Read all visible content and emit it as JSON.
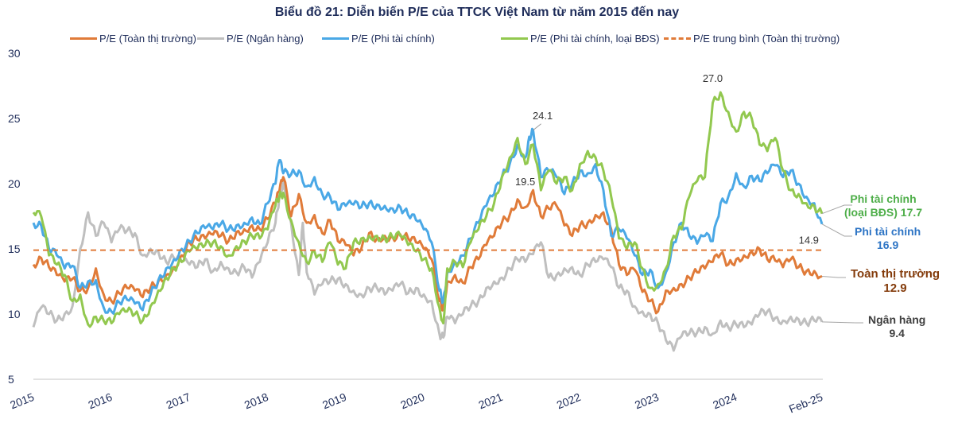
{
  "chart_data": {
    "type": "line",
    "title": "Biểu đồ 21: Diễn biến P/E của TTCK Việt Nam từ năm 2015 đến nay",
    "xlabel": "",
    "ylabel": "",
    "ylim": [
      5,
      30
    ],
    "xlim": [
      2015.0,
      2025.12
    ],
    "yticks": [
      "30",
      "25",
      "20",
      "15",
      "10",
      "5"
    ],
    "ytick_values": [
      30,
      25,
      20,
      15,
      10,
      5
    ],
    "xticks": [
      "2015",
      "2016",
      "2017",
      "2018",
      "2019",
      "2020",
      "2021",
      "2022",
      "2023",
      "2024",
      "Feb-25"
    ],
    "xtick_values": [
      2015,
      2016,
      2017,
      2018,
      2019,
      2020,
      2021,
      2022,
      2023,
      2024,
      2025.1
    ],
    "grid": false,
    "legend_position": "top",
    "series": [
      {
        "name": "P/E (Toàn thị trường)",
        "key": "market",
        "color": "#e07b39",
        "style": "solid",
        "x": [
          2015.0,
          2015.1,
          2015.2,
          2015.3,
          2015.4,
          2015.5,
          2015.6,
          2015.7,
          2015.8,
          2015.9,
          2016.0,
          2016.1,
          2016.2,
          2016.3,
          2016.4,
          2016.5,
          2016.6,
          2016.7,
          2016.8,
          2016.9,
          2017.0,
          2017.1,
          2017.2,
          2017.3,
          2017.4,
          2017.5,
          2017.6,
          2017.7,
          2017.8,
          2017.9,
          2018.0,
          2018.1,
          2018.15,
          2018.2,
          2018.3,
          2018.4,
          2018.5,
          2018.6,
          2018.7,
          2018.8,
          2018.9,
          2019.0,
          2019.1,
          2019.2,
          2019.3,
          2019.4,
          2019.5,
          2019.6,
          2019.7,
          2019.8,
          2019.9,
          2020.0,
          2020.1,
          2020.2,
          2020.25,
          2020.3,
          2020.4,
          2020.5,
          2020.6,
          2020.7,
          2020.8,
          2020.9,
          2021.0,
          2021.1,
          2021.2,
          2021.3,
          2021.4,
          2021.5,
          2021.6,
          2021.7,
          2021.8,
          2021.9,
          2022.0,
          2022.1,
          2022.2,
          2022.3,
          2022.4,
          2022.5,
          2022.6,
          2022.7,
          2022.8,
          2022.9,
          2023.0,
          2023.1,
          2023.2,
          2023.3,
          2023.4,
          2023.5,
          2023.6,
          2023.7,
          2023.8,
          2023.9,
          2024.0,
          2024.1,
          2024.2,
          2024.3,
          2024.4,
          2024.5,
          2024.6,
          2024.7,
          2024.8,
          2024.9,
          2025.0,
          2025.1
        ],
        "values": [
          13.8,
          14.3,
          13.6,
          13.0,
          12.5,
          12.7,
          11.8,
          12.0,
          13.5,
          11.5,
          11.0,
          11.6,
          12.0,
          11.8,
          11.3,
          12.0,
          12.5,
          13.0,
          13.6,
          14.5,
          15.5,
          15.7,
          15.8,
          16.1,
          16.0,
          15.6,
          16.3,
          16.5,
          16.8,
          16.5,
          17.3,
          18.5,
          19.4,
          20.5,
          17.5,
          19.2,
          17.0,
          17.6,
          16.2,
          17.2,
          15.6,
          15.3,
          14.5,
          15.0,
          16.2,
          15.8,
          16.0,
          15.9,
          16.1,
          15.8,
          15.5,
          15.0,
          14.2,
          11.0,
          10.5,
          12.5,
          13.0,
          12.4,
          13.6,
          14.2,
          15.3,
          16.0,
          17.0,
          17.6,
          18.8,
          18.2,
          19.5,
          17.5,
          18.1,
          18.3,
          16.8,
          16.0,
          16.8,
          17.0,
          17.6,
          17.8,
          16.5,
          13.8,
          13.0,
          13.4,
          11.7,
          11.0,
          10.2,
          11.8,
          12.0,
          12.3,
          12.8,
          13.2,
          13.5,
          14.0,
          14.6,
          13.8,
          14.2,
          14.5,
          14.8,
          15.0,
          14.2,
          14.1,
          13.6,
          14.2,
          13.6,
          13.3,
          13.3,
          12.9
        ]
      },
      {
        "name": "P/E (Ngân hàng)",
        "key": "bank",
        "color": "#bfbfbf",
        "style": "solid",
        "x": [
          2015.0,
          2015.1,
          2015.2,
          2015.3,
          2015.4,
          2015.5,
          2015.6,
          2015.7,
          2015.8,
          2015.9,
          2016.0,
          2016.1,
          2016.2,
          2016.3,
          2016.4,
          2016.5,
          2016.6,
          2016.7,
          2016.8,
          2016.9,
          2017.0,
          2017.1,
          2017.2,
          2017.3,
          2017.4,
          2017.5,
          2017.6,
          2017.7,
          2017.8,
          2017.9,
          2018.0,
          2018.1,
          2018.15,
          2018.2,
          2018.3,
          2018.4,
          2018.45,
          2018.5,
          2018.6,
          2018.7,
          2018.8,
          2018.9,
          2019.0,
          2019.1,
          2019.2,
          2019.3,
          2019.4,
          2019.5,
          2019.6,
          2019.7,
          2019.8,
          2019.9,
          2020.0,
          2020.1,
          2020.2,
          2020.25,
          2020.3,
          2020.4,
          2020.5,
          2020.6,
          2020.7,
          2020.8,
          2020.9,
          2021.0,
          2021.1,
          2021.2,
          2021.3,
          2021.4,
          2021.5,
          2021.6,
          2021.7,
          2021.8,
          2021.9,
          2022.0,
          2022.1,
          2022.2,
          2022.3,
          2022.4,
          2022.5,
          2022.6,
          2022.7,
          2022.8,
          2022.9,
          2023.0,
          2023.1,
          2023.2,
          2023.3,
          2023.4,
          2023.5,
          2023.6,
          2023.7,
          2023.8,
          2023.9,
          2024.0,
          2024.1,
          2024.2,
          2024.3,
          2024.4,
          2024.5,
          2024.6,
          2024.7,
          2024.8,
          2024.9,
          2025.0,
          2025.1
        ],
        "values": [
          9.0,
          10.5,
          10.0,
          9.5,
          10.0,
          10.6,
          15.0,
          17.8,
          16.0,
          17.0,
          15.5,
          16.5,
          16.4,
          16.2,
          14.5,
          15.0,
          14.8,
          14.0,
          14.3,
          14.0,
          13.8,
          13.6,
          14.2,
          13.3,
          14.0,
          13.5,
          13.2,
          13.6,
          12.8,
          14.0,
          15.5,
          17.0,
          19.0,
          20.2,
          17.0,
          13.0,
          17.0,
          13.2,
          11.5,
          12.3,
          12.5,
          12.7,
          12.3,
          11.8,
          11.5,
          12.0,
          12.0,
          11.5,
          11.8,
          12.3,
          11.6,
          12.0,
          11.5,
          11.0,
          8.5,
          8.2,
          9.8,
          9.3,
          10.0,
          10.6,
          11.0,
          12.0,
          12.5,
          12.8,
          13.5,
          14.2,
          14.0,
          14.6,
          15.5,
          12.8,
          13.0,
          13.5,
          13.6,
          13.0,
          13.8,
          14.0,
          14.2,
          13.6,
          12.0,
          11.8,
          10.6,
          10.2,
          10.0,
          9.3,
          8.0,
          7.2,
          8.3,
          8.5,
          8.6,
          9.0,
          8.5,
          9.5,
          9.0,
          9.2,
          9.0,
          9.2,
          10.0,
          10.2,
          9.7,
          9.5,
          9.8,
          9.6,
          9.3,
          9.5,
          9.4
        ]
      },
      {
        "name": "P/E (Phi tài chính)",
        "key": "nonfin",
        "color": "#4aa8e6",
        "style": "solid",
        "x": [
          2015.0,
          2015.1,
          2015.2,
          2015.3,
          2015.4,
          2015.5,
          2015.6,
          2015.7,
          2015.8,
          2015.9,
          2016.0,
          2016.1,
          2016.2,
          2016.3,
          2016.4,
          2016.5,
          2016.6,
          2016.7,
          2016.8,
          2016.9,
          2017.0,
          2017.1,
          2017.2,
          2017.3,
          2017.4,
          2017.5,
          2017.6,
          2017.7,
          2017.8,
          2017.9,
          2018.0,
          2018.1,
          2018.15,
          2018.2,
          2018.3,
          2018.4,
          2018.5,
          2018.6,
          2018.7,
          2018.8,
          2018.9,
          2019.0,
          2019.1,
          2019.2,
          2019.3,
          2019.4,
          2019.5,
          2019.6,
          2019.7,
          2019.8,
          2019.9,
          2020.0,
          2020.1,
          2020.2,
          2020.25,
          2020.3,
          2020.4,
          2020.5,
          2020.6,
          2020.7,
          2020.8,
          2020.9,
          2021.0,
          2021.1,
          2021.2,
          2021.3,
          2021.35,
          2021.4,
          2021.5,
          2021.6,
          2021.7,
          2021.8,
          2021.9,
          2022.0,
          2022.1,
          2022.2,
          2022.3,
          2022.4,
          2022.5,
          2022.6,
          2022.7,
          2022.8,
          2022.9,
          2023.0,
          2023.1,
          2023.2,
          2023.3,
          2023.4,
          2023.5,
          2023.6,
          2023.7,
          2023.8,
          2023.9,
          2024.0,
          2024.1,
          2024.2,
          2024.3,
          2024.4,
          2024.5,
          2024.6,
          2024.7,
          2024.8,
          2024.9,
          2025.0,
          2025.1
        ],
        "values": [
          17.0,
          16.8,
          15.0,
          14.5,
          13.5,
          13.7,
          12.0,
          12.5,
          12.6,
          10.5,
          10.2,
          10.9,
          11.1,
          10.8,
          10.3,
          11.5,
          12.6,
          13.5,
          14.2,
          15.0,
          15.6,
          16.2,
          16.6,
          16.5,
          16.9,
          16.5,
          16.8,
          17.0,
          17.4,
          16.9,
          18.5,
          20.0,
          21.8,
          20.8,
          20.7,
          21.0,
          19.8,
          20.5,
          19.2,
          19.0,
          18.0,
          18.3,
          18.4,
          18.2,
          18.5,
          18.4,
          18.3,
          18.1,
          18.2,
          17.6,
          17.2,
          16.5,
          15.5,
          11.8,
          11.0,
          13.2,
          14.0,
          14.5,
          15.8,
          17.0,
          18.3,
          19.2,
          20.5,
          21.5,
          23.0,
          22.0,
          23.6,
          24.1,
          20.5,
          21.0,
          20.5,
          19.2,
          20.0,
          21.0,
          20.8,
          21.5,
          19.5,
          16.0,
          16.5,
          15.8,
          14.5,
          13.0,
          13.4,
          12.0,
          13.2,
          15.5,
          17.0,
          16.0,
          15.4,
          16.0,
          15.6,
          18.5,
          19.0,
          20.8,
          19.8,
          20.6,
          20.2,
          20.8,
          21.4,
          20.5,
          21.0,
          20.0,
          19.0,
          18.5,
          16.9
        ]
      },
      {
        "name": "P/E (Phi tài chính, loại BĐS)",
        "key": "nonfin_exre",
        "color": "#92c84f",
        "style": "solid",
        "x": [
          2015.0,
          2015.1,
          2015.2,
          2015.3,
          2015.4,
          2015.5,
          2015.6,
          2015.7,
          2015.8,
          2015.9,
          2016.0,
          2016.1,
          2016.2,
          2016.3,
          2016.4,
          2016.5,
          2016.6,
          2016.7,
          2016.8,
          2016.9,
          2017.0,
          2017.1,
          2017.2,
          2017.3,
          2017.4,
          2017.5,
          2017.6,
          2017.7,
          2017.8,
          2017.9,
          2018.0,
          2018.1,
          2018.15,
          2018.2,
          2018.3,
          2018.4,
          2018.5,
          2018.6,
          2018.7,
          2018.8,
          2018.9,
          2019.0,
          2019.1,
          2019.2,
          2019.3,
          2019.4,
          2019.5,
          2019.6,
          2019.7,
          2019.8,
          2019.9,
          2020.0,
          2020.1,
          2020.2,
          2020.25,
          2020.3,
          2020.4,
          2020.5,
          2020.6,
          2020.7,
          2020.8,
          2020.9,
          2021.0,
          2021.1,
          2021.2,
          2021.3,
          2021.4,
          2021.5,
          2021.6,
          2021.7,
          2021.8,
          2021.9,
          2022.0,
          2022.1,
          2022.2,
          2022.3,
          2022.4,
          2022.5,
          2022.6,
          2022.7,
          2022.8,
          2022.9,
          2023.0,
          2023.1,
          2023.2,
          2023.3,
          2023.4,
          2023.5,
          2023.6,
          2023.7,
          2023.8,
          2023.9,
          2024.0,
          2024.1,
          2024.2,
          2024.3,
          2024.4,
          2024.5,
          2024.6,
          2024.7,
          2024.8,
          2024.9,
          2025.0,
          2025.1
        ],
        "values": [
          17.8,
          17.5,
          14.5,
          13.8,
          13.0,
          11.0,
          11.5,
          9.2,
          9.8,
          9.5,
          9.3,
          10.0,
          10.2,
          10.0,
          9.5,
          10.6,
          11.8,
          12.8,
          13.5,
          14.0,
          14.8,
          15.0,
          15.3,
          15.5,
          15.2,
          14.5,
          15.2,
          15.6,
          16.0,
          15.8,
          16.5,
          18.3,
          19.0,
          19.3,
          17.2,
          15.5,
          14.0,
          14.8,
          14.0,
          15.5,
          13.8,
          13.5,
          15.5,
          15.8,
          16.0,
          16.0,
          15.8,
          15.9,
          16.0,
          15.3,
          14.8,
          14.2,
          13.5,
          10.5,
          9.3,
          13.5,
          14.0,
          13.6,
          15.5,
          16.5,
          17.5,
          18.5,
          20.5,
          22.0,
          23.5,
          21.5,
          23.0,
          19.5,
          21.0,
          20.0,
          20.5,
          19.5,
          21.5,
          22.5,
          22.0,
          21.0,
          19.0,
          15.8,
          15.0,
          15.5,
          13.5,
          12.0,
          12.3,
          13.5,
          16.0,
          16.5,
          19.0,
          20.2,
          20.5,
          26.2,
          27.0,
          25.5,
          24.0,
          25.5,
          25.0,
          23.0,
          22.5,
          23.5,
          21.0,
          19.5,
          19.2,
          18.5,
          18.3,
          17.7
        ]
      },
      {
        "name": "P/E trung bình (Toàn thị trường)",
        "key": "avg",
        "color": "#e07b39",
        "style": "dashed",
        "x": [
          2015.0,
          2025.1
        ],
        "values": [
          14.9,
          14.9
        ]
      }
    ],
    "annotations": [
      {
        "text": "24.1",
        "series": "nonfin",
        "x": 2021.4,
        "value": 24.1
      },
      {
        "text": "19.5",
        "series": "market",
        "x": 2021.4,
        "value": 19.5
      },
      {
        "text": "27.0",
        "series": "nonfin_exre",
        "x": 2023.7,
        "value": 27.0
      },
      {
        "text": "14.9",
        "series": "avg",
        "x": 2024.95,
        "value": 14.9
      }
    ],
    "end_labels": [
      {
        "series": "nonfin_exre",
        "line1": "Phi tài chính",
        "line2": "(loại BĐS) 17.7",
        "color": "#4eae49"
      },
      {
        "series": "nonfin",
        "line1": "Phi tài chính",
        "line2": "16.9",
        "color": "#2e75c5"
      },
      {
        "series": "market",
        "line1": "Toàn thị trường",
        "line2": "12.9",
        "color": "#843c0c"
      },
      {
        "series": "bank",
        "line1": "Ngân hàng",
        "line2": "9.4",
        "color": "#404040"
      }
    ]
  }
}
